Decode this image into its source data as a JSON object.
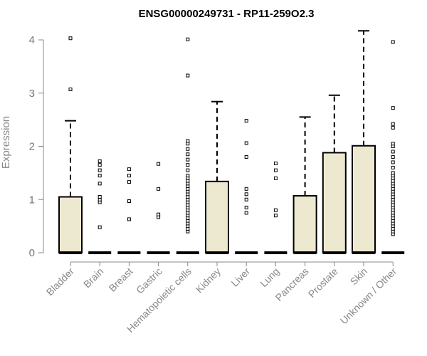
{
  "chart_data": {
    "type": "box",
    "title": "ENSG00000249731 - RP11-259O2.3",
    "xlabel": "",
    "ylabel": "Expression",
    "ylim": [
      0,
      4.2
    ],
    "yticks": [
      0,
      1,
      2,
      3,
      4
    ],
    "grid": false,
    "box_fill": "#ede8d0",
    "categories": [
      "Bladder",
      "Brain",
      "Breast",
      "Gastric",
      "Hematopoietic cells",
      "Kidney",
      "Liver",
      "Lung",
      "Pancreas",
      "Prostate",
      "Skin",
      "Unknown / Other"
    ],
    "boxes": [
      {
        "category": "Bladder",
        "min": 0,
        "q1": 0,
        "median": 0,
        "q3": 1.05,
        "max": 2.48,
        "outliers": [
          3.07,
          4.03
        ]
      },
      {
        "category": "Brain",
        "min": 0,
        "q1": 0,
        "median": 0,
        "q3": 0,
        "max": 0,
        "outliers": [
          0.48,
          0.95,
          1.0,
          1.05,
          1.3,
          1.45,
          1.55,
          1.65,
          1.72
        ]
      },
      {
        "category": "Breast",
        "min": 0,
        "q1": 0,
        "median": 0,
        "q3": 0,
        "max": 0,
        "outliers": [
          0.63,
          0.97,
          1.33,
          1.45,
          1.57
        ]
      },
      {
        "category": "Gastric",
        "min": 0,
        "q1": 0,
        "median": 0,
        "q3": 0,
        "max": 0,
        "outliers": [
          0.67,
          0.72,
          1.2,
          1.67
        ]
      },
      {
        "category": "Hematopoietic cells",
        "min": 0,
        "q1": 0,
        "median": 0,
        "q3": 0,
        "max": 0,
        "outliers": [
          0.4,
          0.45,
          0.5,
          0.55,
          0.6,
          0.65,
          0.7,
          0.75,
          0.8,
          0.85,
          0.9,
          0.95,
          1.0,
          1.05,
          1.1,
          1.15,
          1.2,
          1.25,
          1.3,
          1.35,
          1.4,
          1.45,
          1.55,
          1.65,
          1.75,
          1.85,
          1.95,
          2.05,
          2.1,
          3.33,
          4.01
        ]
      },
      {
        "category": "Kidney",
        "min": 0,
        "q1": 0,
        "median": 0,
        "q3": 1.34,
        "max": 2.84,
        "outliers": []
      },
      {
        "category": "Liver",
        "min": 0,
        "q1": 0,
        "median": 0,
        "q3": 0,
        "max": 0,
        "outliers": [
          0.75,
          0.85,
          1.0,
          1.1,
          1.2,
          1.8,
          2.06,
          2.48
        ]
      },
      {
        "category": "Lung",
        "min": 0,
        "q1": 0,
        "median": 0,
        "q3": 0,
        "max": 0,
        "outliers": [
          0.7,
          0.8,
          1.4,
          1.55,
          1.68
        ]
      },
      {
        "category": "Pancreas",
        "min": 0,
        "q1": 0,
        "median": 0,
        "q3": 1.07,
        "max": 2.55,
        "outliers": []
      },
      {
        "category": "Prostate",
        "min": 0,
        "q1": 0,
        "median": 0,
        "q3": 1.88,
        "max": 2.96,
        "outliers": []
      },
      {
        "category": "Skin",
        "min": 0,
        "q1": 0,
        "median": 0,
        "q3": 2.01,
        "max": 4.17,
        "outliers": []
      },
      {
        "category": "Unknown / Other",
        "min": 0,
        "q1": 0,
        "median": 0,
        "q3": 0,
        "max": 0,
        "outliers": [
          0.35,
          0.4,
          0.45,
          0.5,
          0.55,
          0.6,
          0.65,
          0.7,
          0.75,
          0.8,
          0.85,
          0.9,
          0.95,
          1.0,
          1.05,
          1.1,
          1.15,
          1.2,
          1.25,
          1.3,
          1.35,
          1.4,
          1.45,
          1.5,
          1.6,
          1.7,
          1.8,
          1.9,
          2.0,
          2.05,
          2.35,
          2.42,
          2.72,
          3.96
        ]
      }
    ]
  }
}
